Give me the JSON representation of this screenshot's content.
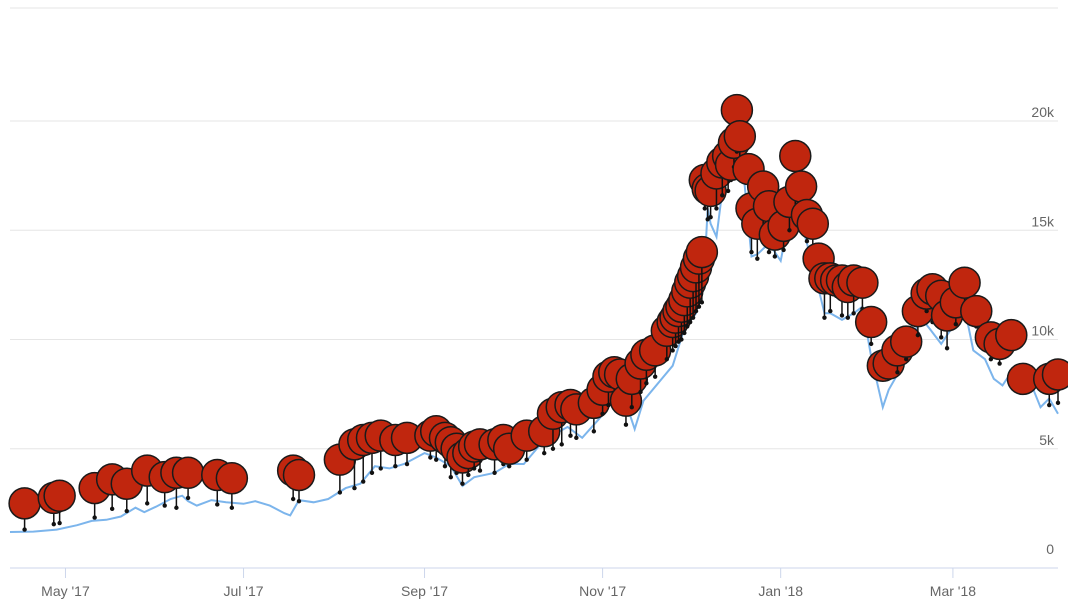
{
  "colors": {
    "line": "#7cb5ec",
    "balloon": "#c0260e",
    "balloon_stroke": "#1a1a1a",
    "grid": "#e6e6e6",
    "tick_text": "#666666"
  },
  "chart_data": {
    "type": "line",
    "title": "",
    "xlabel": "",
    "ylabel": "",
    "ylim": [
      0,
      24000
    ],
    "xlim": [
      "2017-04-12",
      "2018-04-06"
    ],
    "grid": true,
    "y_ticks": [
      {
        "value": 0,
        "label": "0"
      },
      {
        "value": 5000,
        "label": "5k"
      },
      {
        "value": 10000,
        "label": "10k"
      },
      {
        "value": 15000,
        "label": "15k"
      },
      {
        "value": 20000,
        "label": "20k"
      }
    ],
    "x_ticks": [
      {
        "date": "2017-05-01",
        "label": "May '17"
      },
      {
        "date": "2017-07-01",
        "label": "Jul '17"
      },
      {
        "date": "2017-09-01",
        "label": "Sep '17"
      },
      {
        "date": "2017-11-01",
        "label": "Nov '17"
      },
      {
        "date": "2018-01-01",
        "label": "Jan '18"
      },
      {
        "date": "2018-03-01",
        "label": "Mar '18"
      }
    ],
    "series": [
      {
        "values": [
          [
            "2017-04-12",
            1190
          ],
          [
            "2017-04-20",
            1210
          ],
          [
            "2017-04-28",
            1300
          ],
          [
            "2017-05-05",
            1500
          ],
          [
            "2017-05-10",
            1700
          ],
          [
            "2017-05-15",
            1750
          ],
          [
            "2017-05-20",
            1900
          ],
          [
            "2017-05-25",
            2300
          ],
          [
            "2017-05-28",
            2100
          ],
          [
            "2017-06-01",
            2350
          ],
          [
            "2017-06-06",
            2700
          ],
          [
            "2017-06-10",
            2850
          ],
          [
            "2017-06-12",
            2600
          ],
          [
            "2017-06-15",
            2400
          ],
          [
            "2017-06-20",
            2650
          ],
          [
            "2017-06-25",
            2550
          ],
          [
            "2017-07-01",
            2480
          ],
          [
            "2017-07-05",
            2600
          ],
          [
            "2017-07-10",
            2400
          ],
          [
            "2017-07-15",
            2050
          ],
          [
            "2017-07-17",
            1950
          ],
          [
            "2017-07-20",
            2650
          ],
          [
            "2017-07-25",
            2550
          ],
          [
            "2017-07-30",
            2700
          ],
          [
            "2017-08-05",
            3200
          ],
          [
            "2017-08-10",
            3400
          ],
          [
            "2017-08-15",
            4200
          ],
          [
            "2017-08-20",
            4100
          ],
          [
            "2017-08-25",
            4300
          ],
          [
            "2017-09-01",
            4800
          ],
          [
            "2017-09-05",
            4600
          ],
          [
            "2017-09-10",
            4200
          ],
          [
            "2017-09-14",
            3300
          ],
          [
            "2017-09-18",
            3700
          ],
          [
            "2017-09-25",
            3900
          ],
          [
            "2017-09-30",
            4300
          ],
          [
            "2017-10-05",
            4300
          ],
          [
            "2017-10-12",
            5400
          ],
          [
            "2017-10-20",
            6000
          ],
          [
            "2017-10-25",
            5500
          ],
          [
            "2017-10-31",
            6400
          ],
          [
            "2017-11-05",
            7300
          ],
          [
            "2017-11-08",
            7500
          ],
          [
            "2017-11-12",
            5900
          ],
          [
            "2017-11-15",
            7200
          ],
          [
            "2017-11-20",
            8000
          ],
          [
            "2017-11-25",
            8800
          ],
          [
            "2017-11-29",
            10500
          ],
          [
            "2017-12-03",
            11200
          ],
          [
            "2017-12-06",
            13500
          ],
          [
            "2017-12-07",
            16000
          ],
          [
            "2017-12-08",
            15300
          ],
          [
            "2017-12-10",
            14700
          ],
          [
            "2017-12-12",
            16800
          ],
          [
            "2017-12-15",
            17500
          ],
          [
            "2017-12-17",
            19500
          ],
          [
            "2017-12-19",
            18000
          ],
          [
            "2017-12-22",
            13800
          ],
          [
            "2017-12-24",
            13900
          ],
          [
            "2017-12-28",
            14400
          ],
          [
            "2018-01-01",
            13600
          ],
          [
            "2018-01-06",
            17000
          ],
          [
            "2018-01-09",
            14900
          ],
          [
            "2018-01-12",
            13400
          ],
          [
            "2018-01-16",
            11200
          ],
          [
            "2018-01-18",
            11200
          ],
          [
            "2018-01-22",
            10900
          ],
          [
            "2018-01-26",
            11200
          ],
          [
            "2018-01-29",
            11500
          ],
          [
            "2018-02-01",
            9200
          ],
          [
            "2018-02-05",
            6900
          ],
          [
            "2018-02-07",
            7700
          ],
          [
            "2018-02-10",
            8400
          ],
          [
            "2018-02-14",
            9700
          ],
          [
            "2018-02-18",
            11000
          ],
          [
            "2018-02-21",
            10500
          ],
          [
            "2018-02-25",
            9800
          ],
          [
            "2018-02-28",
            10400
          ],
          [
            "2018-03-03",
            11500
          ],
          [
            "2018-03-06",
            10800
          ],
          [
            "2018-03-08",
            9500
          ],
          [
            "2018-03-12",
            9100
          ],
          [
            "2018-03-15",
            8200
          ],
          [
            "2018-03-18",
            7900
          ],
          [
            "2018-03-22",
            8700
          ],
          [
            "2018-03-25",
            8600
          ],
          [
            "2018-03-28",
            7900
          ],
          [
            "2018-03-31",
            6900
          ],
          [
            "2018-04-03",
            7300
          ],
          [
            "2018-04-06",
            6600
          ]
        ]
      }
    ],
    "flags": [
      [
        "2017-04-17",
        1300,
        2500
      ],
      [
        "2017-04-27",
        1550,
        2750
      ],
      [
        "2017-04-29",
        1600,
        2850
      ],
      [
        "2017-05-11",
        1850,
        3200
      ],
      [
        "2017-05-17",
        2250,
        3600
      ],
      [
        "2017-05-22",
        2150,
        3400
      ],
      [
        "2017-05-29",
        2500,
        4000
      ],
      [
        "2017-06-04",
        2400,
        3700
      ],
      [
        "2017-06-08",
        2300,
        3900
      ],
      [
        "2017-06-12",
        2750,
        3900
      ],
      [
        "2017-06-22",
        2450,
        3800
      ],
      [
        "2017-06-27",
        2300,
        3650
      ],
      [
        "2017-07-18",
        2700,
        4000
      ],
      [
        "2017-07-20",
        2600,
        3800
      ],
      [
        "2017-08-03",
        3000,
        4500
      ],
      [
        "2017-08-08",
        3200,
        5200
      ],
      [
        "2017-08-11",
        3500,
        5400
      ],
      [
        "2017-08-14",
        3900,
        5500
      ],
      [
        "2017-08-17",
        4100,
        5600
      ],
      [
        "2017-08-22",
        4200,
        5400
      ],
      [
        "2017-08-26",
        4300,
        5500
      ],
      [
        "2017-09-03",
        4600,
        5600
      ],
      [
        "2017-09-05",
        4500,
        5800
      ],
      [
        "2017-09-08",
        4200,
        5500
      ],
      [
        "2017-09-10",
        3700,
        5300
      ],
      [
        "2017-09-12",
        3900,
        5000
      ],
      [
        "2017-09-14",
        3400,
        4600
      ],
      [
        "2017-09-16",
        3800,
        4800
      ],
      [
        "2017-09-18",
        4100,
        5100
      ],
      [
        "2017-09-20",
        4000,
        5200
      ],
      [
        "2017-09-25",
        3900,
        5200
      ],
      [
        "2017-09-28",
        4300,
        5400
      ],
      [
        "2017-09-30",
        4200,
        5000
      ],
      [
        "2017-10-06",
        4500,
        5600
      ],
      [
        "2017-10-12",
        4800,
        5800
      ],
      [
        "2017-10-15",
        5000,
        6600
      ],
      [
        "2017-10-18",
        5200,
        6900
      ],
      [
        "2017-10-21",
        5600,
        7000
      ],
      [
        "2017-10-23",
        5500,
        6800
      ],
      [
        "2017-10-29",
        5800,
        7100
      ],
      [
        "2017-11-01",
        6600,
        7700
      ],
      [
        "2017-11-03",
        7000,
        8300
      ],
      [
        "2017-11-05",
        7200,
        8500
      ],
      [
        "2017-11-07",
        7100,
        8400
      ],
      [
        "2017-11-09",
        6100,
        7200
      ],
      [
        "2017-11-11",
        6900,
        8200
      ],
      [
        "2017-11-14",
        7600,
        8900
      ],
      [
        "2017-11-16",
        8000,
        9300
      ],
      [
        "2017-11-19",
        8300,
        9500
      ],
      [
        "2017-11-23",
        9100,
        10400
      ],
      [
        "2017-11-25",
        9500,
        10800
      ],
      [
        "2017-11-26",
        9700,
        11000
      ],
      [
        "2017-11-27",
        9900,
        11300
      ],
      [
        "2017-11-28",
        10000,
        11500
      ],
      [
        "2017-11-29",
        10300,
        11800
      ],
      [
        "2017-11-30",
        10600,
        12200
      ],
      [
        "2017-12-01",
        10800,
        12600
      ],
      [
        "2017-12-02",
        11000,
        12900
      ],
      [
        "2017-12-03",
        11300,
        13300
      ],
      [
        "2017-12-04",
        11500,
        13700
      ],
      [
        "2017-12-05",
        11700,
        14000
      ],
      [
        "2017-12-06",
        16000,
        17300
      ],
      [
        "2017-12-07",
        15500,
        16900
      ],
      [
        "2017-12-08",
        15600,
        16800
      ],
      [
        "2017-12-10",
        16000,
        17600
      ],
      [
        "2017-12-12",
        16600,
        18100
      ],
      [
        "2017-12-14",
        16800,
        18400
      ],
      [
        "2017-12-15",
        17300,
        18000
      ],
      [
        "2017-12-16",
        17900,
        19000
      ],
      [
        "2017-12-17",
        18600,
        20500
      ],
      [
        "2017-12-18",
        17600,
        19300
      ],
      [
        "2017-12-21",
        15300,
        17800
      ],
      [
        "2017-12-22",
        14000,
        16000
      ],
      [
        "2017-12-24",
        13700,
        15300
      ],
      [
        "2017-12-26",
        14600,
        17000
      ],
      [
        "2017-12-28",
        14000,
        16100
      ],
      [
        "2017-12-30",
        13800,
        14800
      ],
      [
        "2018-01-02",
        14100,
        15200
      ],
      [
        "2018-01-04",
        15000,
        16300
      ],
      [
        "2018-01-06",
        16000,
        18400
      ],
      [
        "2018-01-08",
        15800,
        17000
      ],
      [
        "2018-01-10",
        14500,
        15700
      ],
      [
        "2018-01-12",
        13500,
        15300
      ],
      [
        "2018-01-14",
        13300,
        13700
      ],
      [
        "2018-01-16",
        11000,
        12800
      ],
      [
        "2018-01-18",
        11300,
        12800
      ],
      [
        "2018-01-20",
        12000,
        12700
      ],
      [
        "2018-01-22",
        11100,
        12700
      ],
      [
        "2018-01-24",
        11000,
        12400
      ],
      [
        "2018-01-26",
        11200,
        12700
      ],
      [
        "2018-01-29",
        11400,
        12600
      ],
      [
        "2018-02-01",
        9800,
        10800
      ],
      [
        "2018-02-05",
        8400,
        8800
      ],
      [
        "2018-02-07",
        8300,
        8900
      ],
      [
        "2018-02-10",
        8500,
        9500
      ],
      [
        "2018-02-13",
        9100,
        9900
      ],
      [
        "2018-02-17",
        10200,
        11300
      ],
      [
        "2018-02-20",
        11300,
        12100
      ],
      [
        "2018-02-22",
        10800,
        12300
      ],
      [
        "2018-02-25",
        10100,
        12000
      ],
      [
        "2018-02-27",
        9600,
        11100
      ],
      [
        "2018-03-02",
        10700,
        11700
      ],
      [
        "2018-03-05",
        11300,
        12600
      ],
      [
        "2018-03-09",
        10600,
        11300
      ],
      [
        "2018-03-14",
        9100,
        10100
      ],
      [
        "2018-03-17",
        8900,
        9800
      ],
      [
        "2018-03-21",
        9600,
        10200
      ],
      [
        "2018-03-25",
        7900,
        8200
      ],
      [
        "2018-04-03",
        7000,
        8200
      ],
      [
        "2018-04-06",
        7100,
        8400
      ]
    ]
  }
}
